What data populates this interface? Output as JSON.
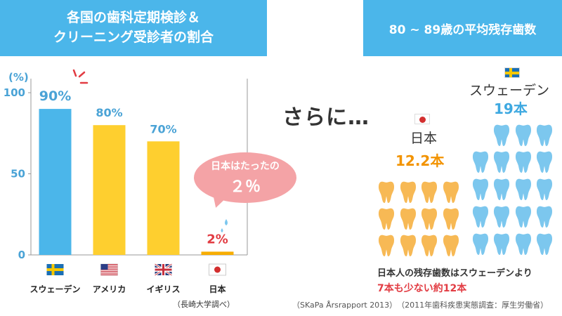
{
  "left_panel": {
    "title_line1": "各国の歯科定期検診＆",
    "title_line2": "クリーニング受診者の割合",
    "source": "（長崎大学調べ）"
  },
  "right_panel": {
    "title": "80 ~ 89歳の平均残存歯数",
    "sarani": "さらに…",
    "sweden": {
      "name": "スウェーデン",
      "count_label": "19本"
    },
    "japan": {
      "name": "日本",
      "count_label": "12.2本"
    },
    "summary_line1": "日本人の残存歯数はスウェーデンより",
    "summary_line2": "7本も少ない約12本",
    "source": "（SKaPa Årsrapport 2013）　（2011年歯科疾患実態調査：厚生労働省）"
  },
  "bubble": {
    "line1": "日本はたったの",
    "line2": "２％"
  },
  "colors": {
    "banner": "#4bb6ea",
    "sweden_bar": "#4bb6ea",
    "other_bar": "#fecf2f",
    "japan_bar": "#f7ad00",
    "tooth_blue": "#7cc7ee",
    "tooth_orange": "#f7b955"
  },
  "chart_data": [
    {
      "type": "bar",
      "title": "各国の歯科定期検診＆クリーニング受診者の割合",
      "ylabel": "(%)",
      "ylim": [
        0,
        100
      ],
      "yticks": [
        0,
        50,
        100
      ],
      "categories": [
        "スウェーデン",
        "アメリカ",
        "イギリス",
        "日本"
      ],
      "values": [
        90,
        80,
        70,
        2
      ],
      "value_labels": [
        "90%",
        "80%",
        "70%",
        "2%"
      ],
      "grid": false
    },
    {
      "type": "table",
      "title": "80 ~ 89歳の平均残存歯数",
      "categories": [
        "スウェーデン",
        "日本"
      ],
      "values": [
        19,
        12.2
      ],
      "value_labels": [
        "19本",
        "12.2本"
      ]
    }
  ]
}
